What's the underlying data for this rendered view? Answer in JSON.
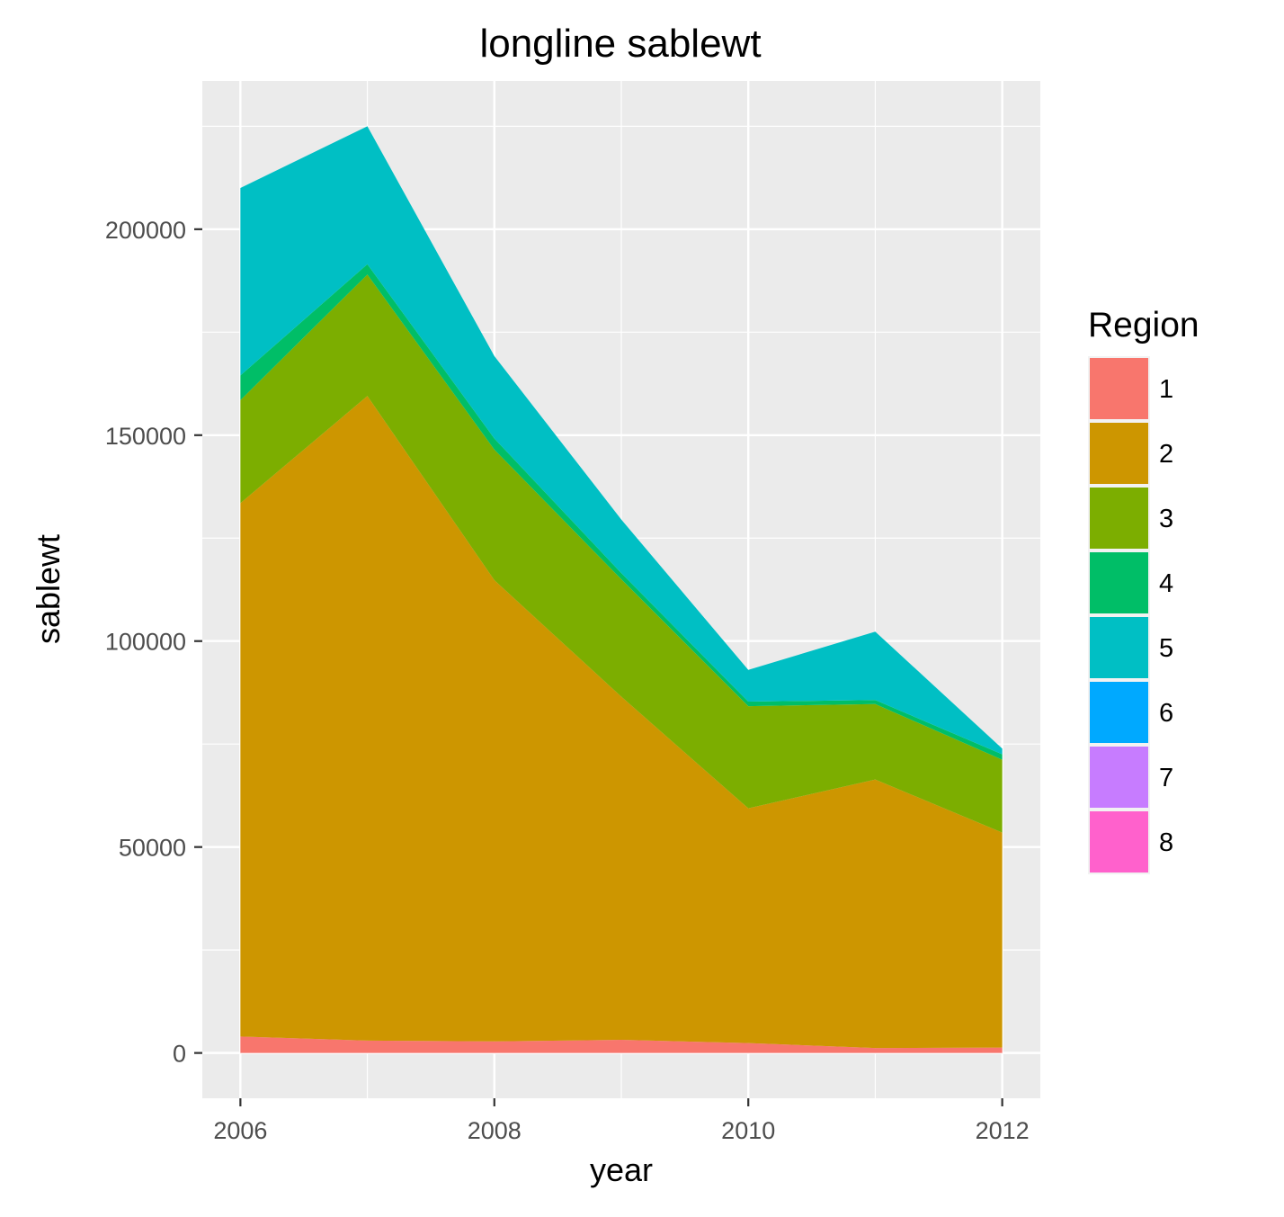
{
  "chart_data": {
    "type": "area",
    "stacked": true,
    "title": "longline sablewt",
    "xlabel": "year",
    "ylabel": "sablewt",
    "x": [
      2006,
      2007,
      2008,
      2009,
      2010,
      2011,
      2012
    ],
    "x_ticks": [
      "2006",
      "2008",
      "2010",
      "2012"
    ],
    "y_ticks": [
      "0",
      "50000",
      "100000",
      "150000",
      "200000"
    ],
    "xlim": [
      2005.7,
      2012.3
    ],
    "ylim": [
      -11000,
      236000
    ],
    "grid": true,
    "legend_title": "Region",
    "legend_position": "right",
    "series": [
      {
        "name": "1",
        "color": "#F8766D",
        "values": [
          4000,
          3000,
          2800,
          3200,
          2400,
          1200,
          1300
        ]
      },
      {
        "name": "2",
        "color": "#CD9600",
        "values": [
          129500,
          156500,
          112000,
          83300,
          57000,
          65200,
          52200
        ]
      },
      {
        "name": "3",
        "color": "#7CAE00",
        "values": [
          25000,
          29500,
          31700,
          28500,
          24800,
          18300,
          17700
        ]
      },
      {
        "name": "4",
        "color": "#00BE67",
        "values": [
          6000,
          2500,
          2700,
          1500,
          1100,
          1000,
          1300
        ]
      },
      {
        "name": "5",
        "color": "#00BFC4",
        "values": [
          45500,
          33500,
          20000,
          13000,
          7700,
          16600,
          1400
        ]
      },
      {
        "name": "6",
        "color": "#00A9FF",
        "values": [
          0,
          0,
          0,
          0,
          0,
          0,
          0
        ]
      },
      {
        "name": "7",
        "color": "#C77CFF",
        "values": [
          0,
          0,
          0,
          0,
          0,
          0,
          0
        ]
      },
      {
        "name": "8",
        "color": "#FF61CC",
        "values": [
          0,
          0,
          0,
          0,
          0,
          0,
          0
        ]
      }
    ]
  }
}
